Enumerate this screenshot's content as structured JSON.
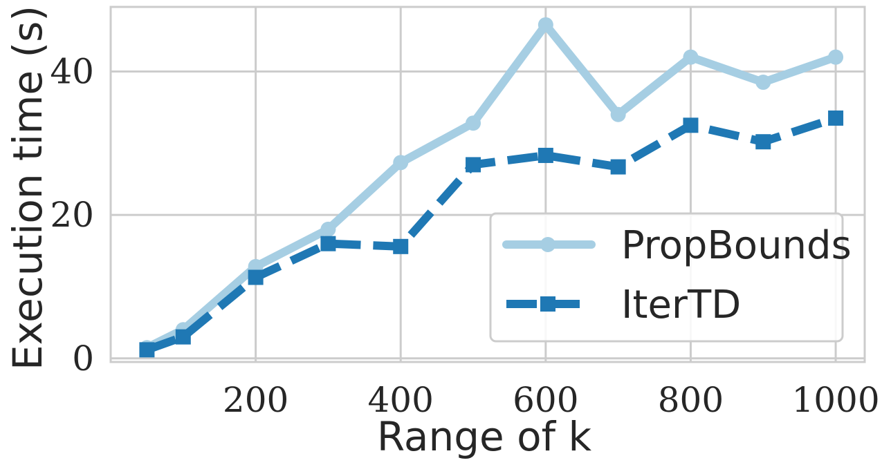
{
  "chart_data": {
    "type": "line",
    "xlabel": "Range of k",
    "ylabel": "Execution time (s)",
    "xlim": [
      0,
      1040
    ],
    "ylim": [
      -0.5,
      49
    ],
    "xticks": [
      200,
      400,
      600,
      800,
      1000
    ],
    "yticks": [
      0,
      20,
      40
    ],
    "grid": true,
    "legend_position": "lower-right",
    "series": [
      {
        "name": "PropBounds",
        "color": "#a6cee3",
        "style": "solid",
        "marker": "circle",
        "x": [
          50,
          100,
          200,
          300,
          400,
          500,
          600,
          700,
          800,
          900,
          1000
        ],
        "y": [
          1.5,
          4.0,
          12.8,
          18.0,
          27.3,
          32.8,
          46.5,
          34.0,
          42.0,
          38.5,
          42.0
        ]
      },
      {
        "name": "IterTD",
        "color": "#1f78b4",
        "style": "dashed",
        "marker": "square",
        "x": [
          50,
          100,
          200,
          300,
          400,
          500,
          600,
          700,
          800,
          900,
          1000
        ],
        "y": [
          1.2,
          3.0,
          11.3,
          16.0,
          15.6,
          27.0,
          28.3,
          26.7,
          32.5,
          30.2,
          33.5
        ]
      }
    ]
  }
}
